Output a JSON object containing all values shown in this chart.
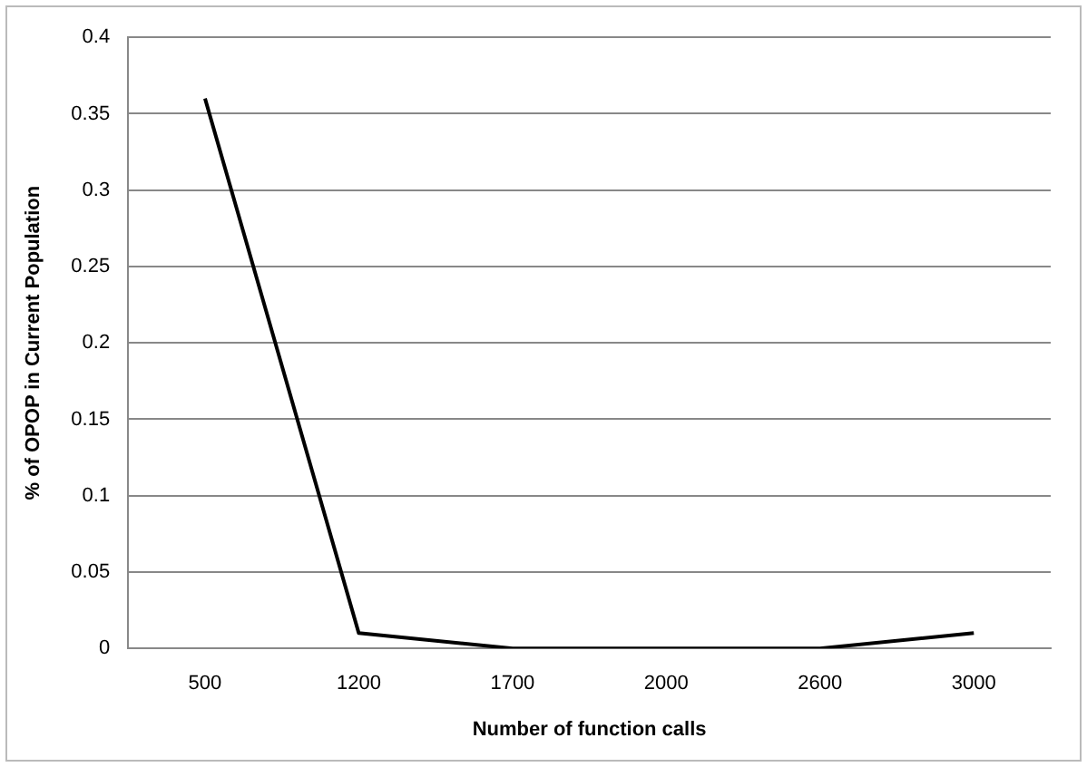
{
  "chart_data": {
    "type": "line",
    "xlabel": "Number of function calls",
    "ylabel": "% of OPOP in Current Population",
    "categories": [
      "500",
      "1200",
      "1700",
      "2000",
      "2600",
      "3000"
    ],
    "series": [
      {
        "color": "#000000",
        "values": [
          0.36,
          0.01,
          0,
          0,
          0,
          0.01
        ]
      }
    ],
    "ylim": [
      0,
      0.4
    ],
    "yticks": [
      0,
      0.05,
      0.1,
      0.15,
      0.2,
      0.25,
      0.3,
      0.35,
      0.4
    ],
    "grid": "y",
    "legend": false,
    "marker": "none",
    "line_style": "solid"
  }
}
